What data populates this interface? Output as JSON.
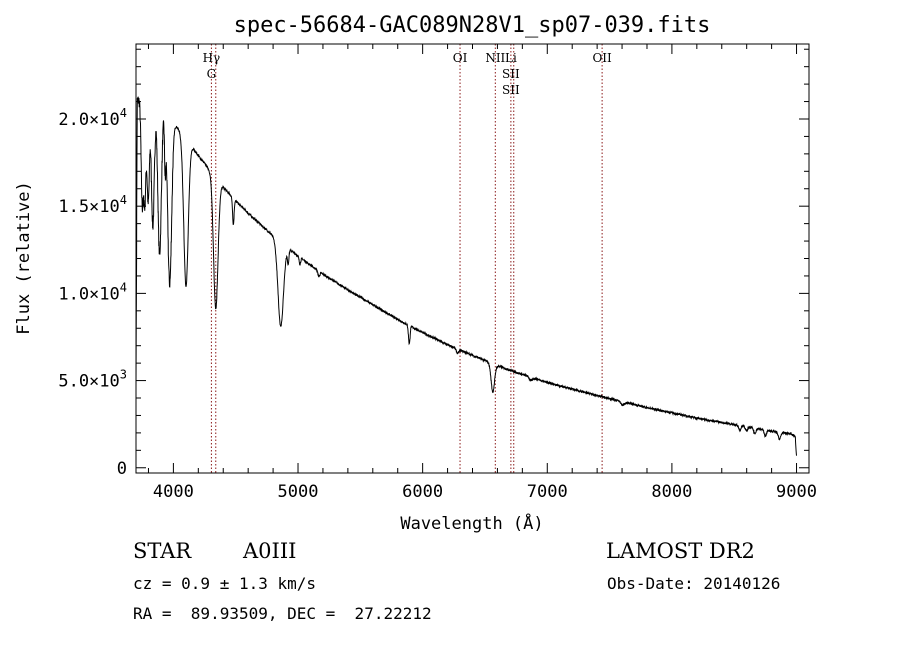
{
  "chart_data": {
    "type": "line",
    "title": "spec-56684-GAC089N28V1_sp07-039.fits",
    "xlabel": "Wavelength (Å)",
    "ylabel": "Flux (relative)",
    "xlim": [
      3700,
      9100
    ],
    "ylim": [
      -300,
      24300
    ],
    "xticks": [
      4000,
      5000,
      6000,
      7000,
      8000,
      9000
    ],
    "xtick_labels": [
      "4000",
      "5000",
      "6000",
      "7000",
      "8000",
      "9000"
    ],
    "yticks": [
      {
        "value": 0,
        "mant": "0",
        "exp": ""
      },
      {
        "value": 5000,
        "mant": "5.0×10",
        "exp": "3"
      },
      {
        "value": 10000,
        "mant": "1.0×10",
        "exp": "4"
      },
      {
        "value": 15000,
        "mant": "1.5×10",
        "exp": "4"
      },
      {
        "value": 20000,
        "mant": "2.0×10",
        "exp": "4"
      }
    ],
    "grid": false,
    "line_color": "#000000",
    "marker_color": "#8b1a1a",
    "lines": [
      {
        "wavelength": 4305,
        "labels": [
          "Hγ",
          "G"
        ]
      },
      {
        "wavelength": 4340,
        "labels": []
      },
      {
        "wavelength": 6300,
        "labels": [
          "OI"
        ]
      },
      {
        "wavelength": 6583,
        "labels": [
          "NII"
        ]
      },
      {
        "wavelength": 6708,
        "labels": [
          "Li",
          "SII",
          "SII"
        ]
      },
      {
        "wavelength": 6731,
        "labels": []
      },
      {
        "wavelength": 7440,
        "labels": [
          "OII"
        ]
      }
    ],
    "series": [
      {
        "continuum": [
          [
            3700,
            5000
          ],
          [
            3710,
            21000
          ],
          [
            3800,
            21800
          ],
          [
            3900,
            20600
          ],
          [
            4000,
            19800
          ],
          [
            4100,
            18900
          ],
          [
            4200,
            17900
          ],
          [
            4300,
            17000
          ],
          [
            4400,
            16100
          ],
          [
            4500,
            15300
          ],
          [
            4600,
            14600
          ],
          [
            4700,
            13950
          ],
          [
            4800,
            13300
          ],
          [
            4900,
            12700
          ],
          [
            5000,
            12150
          ],
          [
            5200,
            11100
          ],
          [
            5400,
            10200
          ],
          [
            5600,
            9350
          ],
          [
            5800,
            8500
          ],
          [
            6000,
            7750
          ],
          [
            6200,
            7050
          ],
          [
            6400,
            6450
          ],
          [
            6600,
            5850
          ],
          [
            6800,
            5350
          ],
          [
            7000,
            4900
          ],
          [
            7200,
            4500
          ],
          [
            7400,
            4150
          ],
          [
            7600,
            3800
          ],
          [
            7800,
            3450
          ],
          [
            8000,
            3150
          ],
          [
            8200,
            2850
          ],
          [
            8400,
            2600
          ],
          [
            8600,
            2350
          ],
          [
            8800,
            2100
          ],
          [
            8950,
            1950
          ],
          [
            8990,
            1800
          ],
          [
            9000,
            600
          ]
        ],
        "absorption": [
          {
            "center": 3750,
            "depth": 6000,
            "width": 9
          },
          {
            "center": 3771,
            "depth": 6000,
            "width": 9
          },
          {
            "center": 3798,
            "depth": 6500,
            "width": 10
          },
          {
            "center": 3835,
            "depth": 7500,
            "width": 12
          },
          {
            "center": 3889,
            "depth": 8500,
            "width": 14
          },
          {
            "center": 3934,
            "depth": 3000,
            "width": 5
          },
          {
            "center": 3970,
            "depth": 9500,
            "width": 16
          },
          {
            "center": 4101,
            "depth": 8500,
            "width": 18
          },
          {
            "center": 4340,
            "depth": 7500,
            "width": 18
          },
          {
            "center": 4481,
            "depth": 1500,
            "width": 6
          },
          {
            "center": 4861,
            "depth": 4800,
            "width": 22
          },
          {
            "center": 4921,
            "depth": 800,
            "width": 6
          },
          {
            "center": 5015,
            "depth": 400,
            "width": 6
          },
          {
            "center": 5167,
            "depth": 300,
            "width": 8
          },
          {
            "center": 5890,
            "depth": 700,
            "width": 6
          },
          {
            "center": 5896,
            "depth": 500,
            "width": 5
          },
          {
            "center": 6280,
            "depth": 250,
            "width": 10
          },
          {
            "center": 6563,
            "depth": 1600,
            "width": 14
          },
          {
            "center": 6870,
            "depth": 200,
            "width": 12
          },
          {
            "center": 7605,
            "depth": 200,
            "width": 15
          },
          {
            "center": 8545,
            "depth": 250,
            "width": 8
          },
          {
            "center": 8598,
            "depth": 250,
            "width": 8
          },
          {
            "center": 8665,
            "depth": 300,
            "width": 9
          },
          {
            "center": 8750,
            "depth": 350,
            "width": 9
          },
          {
            "center": 8863,
            "depth": 400,
            "width": 10
          }
        ]
      }
    ]
  },
  "info": {
    "object_type": "STAR",
    "subclass": "A0III",
    "survey": "LAMOST DR2",
    "redshift": "cz = 0.9 ± 1.3 km/s",
    "obs_date": "Obs-Date: 20140126",
    "coords": "RA =  89.93509, DEC =  27.22212"
  }
}
